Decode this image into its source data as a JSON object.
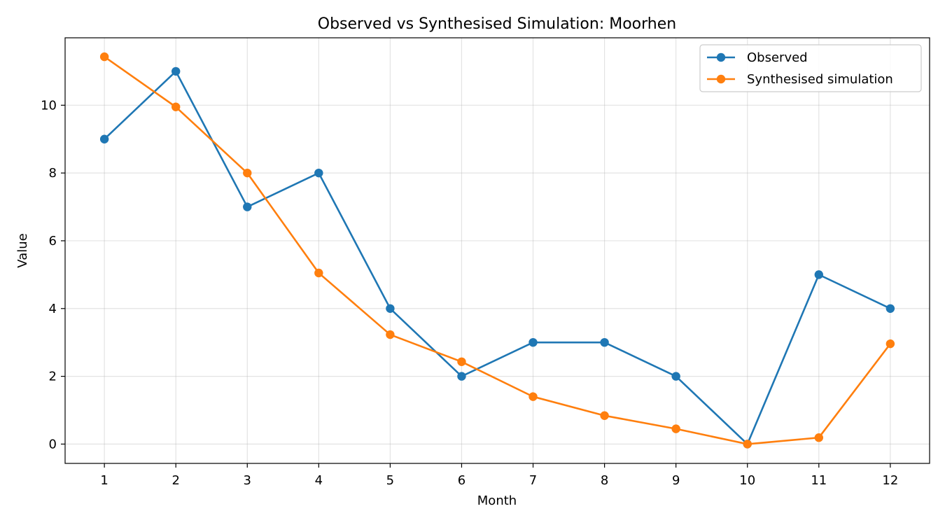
{
  "chart_data": {
    "type": "line",
    "title": "Observed vs Synthesised Simulation: Moorhen",
    "xlabel": "Month",
    "ylabel": "Value",
    "x": [
      1,
      2,
      3,
      4,
      5,
      6,
      7,
      8,
      9,
      10,
      11,
      12
    ],
    "xticks": [
      "1",
      "2",
      "3",
      "4",
      "5",
      "6",
      "7",
      "8",
      "9",
      "10",
      "11",
      "12"
    ],
    "yticks": [
      0,
      2,
      4,
      6,
      8,
      10
    ],
    "xlim": [
      0.45,
      12.55
    ],
    "ylim": [
      -0.57,
      11.99
    ],
    "grid": true,
    "legend_position": "top-right",
    "series": [
      {
        "name": "Observed",
        "color": "#1f77b4",
        "marker": "circle",
        "values": [
          9,
          11,
          7,
          8,
          4,
          2,
          3,
          3,
          2,
          0,
          5,
          4
        ]
      },
      {
        "name": "Synthesised simulation",
        "color": "#ff7f0e",
        "marker": "circle",
        "values": [
          11.43,
          9.95,
          8.0,
          5.05,
          3.23,
          2.43,
          1.4,
          0.84,
          0.45,
          0.0,
          0.19,
          2.96
        ]
      }
    ]
  }
}
